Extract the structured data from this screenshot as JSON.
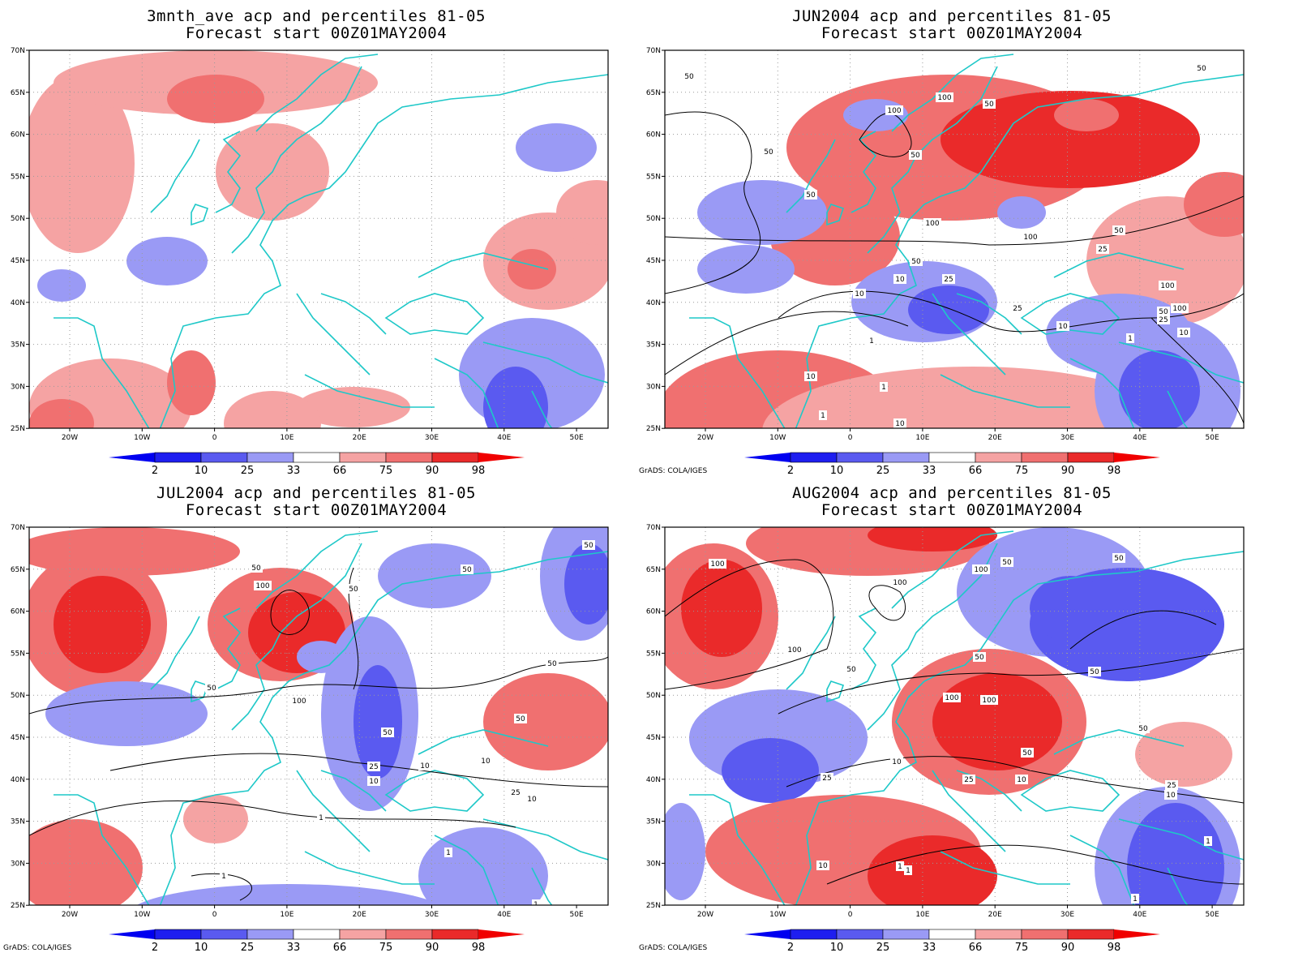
{
  "colors": {
    "blue_dark": "#1e1ef0",
    "blue_mid": "#5a5af0",
    "blue_light": "#9a9af5",
    "red_light": "#f5a3a3",
    "red_mid": "#f07070",
    "red_dark": "#ea2a2a",
    "coast": "#1ec8c8",
    "contour": "#000000",
    "grid": "#9a9a9a"
  },
  "axes": {
    "lon_ticks": [
      "20W",
      "10W",
      "0",
      "10E",
      "20E",
      "30E",
      "40E",
      "50E"
    ],
    "lat_ticks": [
      "70N",
      "65N",
      "60N",
      "55N",
      "50N",
      "45N",
      "40N",
      "35N",
      "30N",
      "25N"
    ]
  },
  "colorbar": {
    "labels": [
      "2",
      "10",
      "25",
      "33",
      "66",
      "75",
      "90",
      "98"
    ]
  },
  "credit": "GrADS: COLA/IGES",
  "panels": [
    {
      "title": "3mnth_ave acp and percentiles 81-05",
      "subtitle": "Forecast start 00Z01MAY2004",
      "contour_labels": []
    },
    {
      "title": "JUN2004 acp and percentiles 81-05",
      "subtitle": "Forecast start 00Z01MAY2004",
      "contour_labels": [
        "50",
        "100",
        "100",
        "50",
        "50",
        "50",
        "50",
        "50",
        "100",
        "100",
        "50",
        "25",
        "50",
        "10",
        "25",
        "100",
        "10",
        "25",
        "10",
        "100",
        "50",
        "25",
        "10",
        "1",
        "10",
        "1",
        "1",
        "1",
        "10"
      ]
    },
    {
      "title": "JUL2004 acp and percentiles 81-05",
      "subtitle": "Forecast start 00Z01MAY2004",
      "contour_labels": [
        "50",
        "100",
        "50",
        "50",
        "50",
        "50",
        "50",
        "100",
        "50",
        "25",
        "10",
        "10",
        "10",
        "25",
        "10",
        "50",
        "1",
        "1",
        "1",
        "1"
      ]
    },
    {
      "title": "AUG2004 acp and percentiles 81-05",
      "subtitle": "Forecast start 00Z01MAY2004",
      "contour_labels": [
        "100",
        "100",
        "50",
        "50",
        "100",
        "100",
        "50",
        "50",
        "50",
        "100",
        "100",
        "50",
        "50",
        "10",
        "25",
        "25",
        "10",
        "25",
        "10",
        "1",
        "1",
        "10",
        "1",
        "1"
      ]
    }
  ]
}
